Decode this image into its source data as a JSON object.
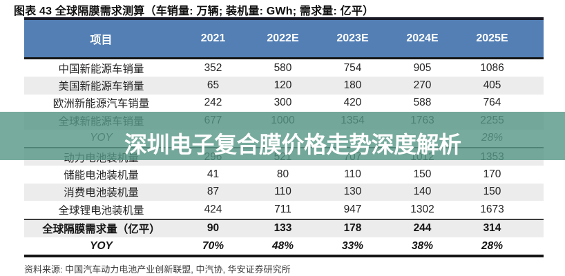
{
  "title": "图表 43 全球隔膜需求测算（车销量: 万辆; 装机量: GWh; 需求量: 亿平）",
  "watermark": {
    "text": "深圳电子复合膜价格走势深度解析"
  },
  "source": "资料来源: 中国汽车动力电池产业创新联盟, 中汽协, 华安证券研究所",
  "colors": {
    "header_bg": "#537fb5",
    "zebra_row": "#ececec",
    "watermark_green": "#77ab9d",
    "border_dark": "#141414"
  },
  "table": {
    "columns": [
      "项目",
      "2021",
      "2022E",
      "2023E",
      "2024E",
      "2025E"
    ],
    "rows": [
      {
        "label": "中国新能源车销量",
        "values": [
          "352",
          "580",
          "754",
          "905",
          "1086"
        ],
        "style": "normal"
      },
      {
        "label": "美国新能源车销量",
        "values": [
          "65",
          "120",
          "180",
          "270",
          "405"
        ],
        "style": "normal"
      },
      {
        "label": "欧洲新能源汽车销量",
        "values": [
          "242",
          "300",
          "420",
          "588",
          "764"
        ],
        "style": "normal"
      },
      {
        "label": "全球新能源车销量",
        "values": [
          "677",
          "1000",
          "1354",
          "1763",
          "2255"
        ],
        "style": "normal"
      },
      {
        "label": "YOY",
        "values": [
          "",
          "",
          "",
          "",
          "28%"
        ],
        "style": "yoy"
      },
      {
        "label": "动力电池装机量",
        "values": [
          "296",
          "521",
          "707",
          "1012",
          "1353"
        ],
        "style": "normal"
      },
      {
        "label": "储能电池装机量",
        "values": [
          "41",
          "80",
          "110",
          "150",
          "170"
        ],
        "style": "normal"
      },
      {
        "label": "消费电池装机量",
        "values": [
          "87",
          "110",
          "130",
          "140",
          "150"
        ],
        "style": "normal"
      },
      {
        "label": "全球锂电池装机量",
        "values": [
          "424",
          "711",
          "947",
          "1302",
          "1673"
        ],
        "style": "normal"
      },
      {
        "label": "全球隔膜需求量（亿平）",
        "values": [
          "90",
          "133",
          "178",
          "244",
          "314"
        ],
        "style": "bold"
      },
      {
        "label": "YOY",
        "values": [
          "70%",
          "48%",
          "33%",
          "38%",
          "28%"
        ],
        "style": "bold-yoy"
      }
    ],
    "section_breaks_after": [
      4,
      8
    ]
  }
}
